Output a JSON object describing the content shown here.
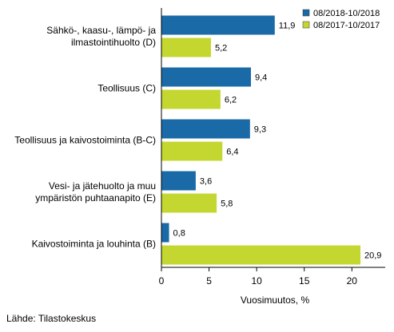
{
  "chart_data": {
    "type": "bar",
    "orientation": "horizontal",
    "categories": [
      [
        "Sähkö-, kaasu-, lämpö- ja",
        "ilmastointihuolto (D)"
      ],
      [
        "Teollisuus (C)"
      ],
      [
        "Teollisuus ja kaivostoiminta (B-C)"
      ],
      [
        "Vesi- ja jätehuolto ja muu",
        "ympäristön puhtaanapito (E)"
      ],
      [
        "Kaivostoiminta ja louhinta (B)"
      ]
    ],
    "series": [
      {
        "name": "08/2018-10/2018",
        "color": "#1a6aa8",
        "values": [
          11.9,
          9.4,
          9.3,
          3.6,
          0.8
        ],
        "labels": [
          "11,9",
          "9,4",
          "9,3",
          "3,6",
          "0,8"
        ]
      },
      {
        "name": "08/2017-10/2017",
        "color": "#c4d730",
        "values": [
          5.2,
          6.2,
          6.4,
          5.8,
          20.9
        ],
        "labels": [
          "5,2",
          "6,2",
          "6,4",
          "5,8",
          "20,9"
        ]
      }
    ],
    "xlabel": "Vuosimuutos, %",
    "xlim": [
      0,
      23.5
    ],
    "xticks": [
      0,
      5,
      10,
      15,
      20
    ],
    "grid": false,
    "legend_position": "top-right"
  },
  "source": "Lähde: Tilastokeskus"
}
